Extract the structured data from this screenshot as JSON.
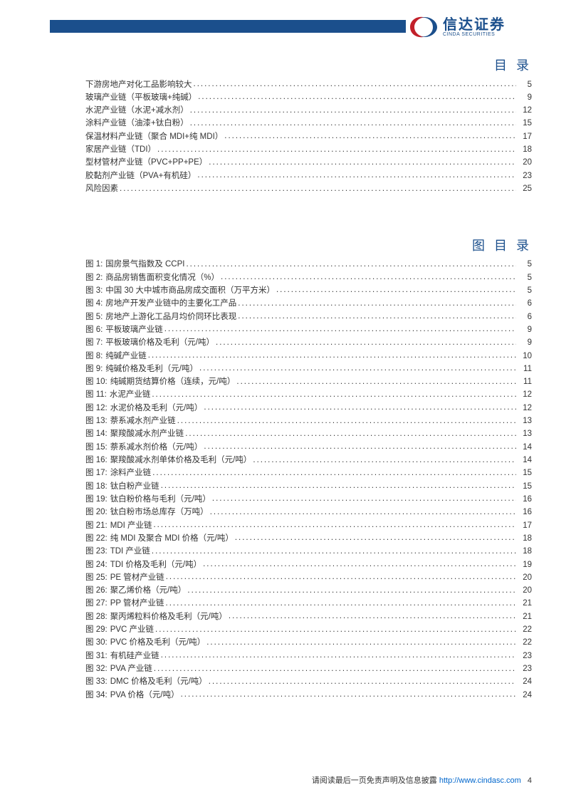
{
  "logo": {
    "cn": "信达证券",
    "en": "CINDA SECURITIES"
  },
  "colors": {
    "header_bar": "#1b4f8c",
    "title": "#1b4f8c",
    "text": "#333333",
    "link": "#0066cc",
    "logo_red": "#c2202a",
    "logo_blue": "#1b4f8c",
    "bg": "#ffffff"
  },
  "sections": {
    "toc_title": "目 录",
    "fig_title": "图 目 录"
  },
  "toc": [
    {
      "label": "下游房地产对化工品影响较大",
      "page": "5"
    },
    {
      "label": "玻璃产业链（平板玻璃+纯碱）",
      "page": "9"
    },
    {
      "label": "水泥产业链（水泥+减水剂）",
      "page": "12"
    },
    {
      "label": "涂料产业链（油漆+钛白粉）",
      "page": "15"
    },
    {
      "label": "保温材料产业链（聚合 MDI+纯 MDI）",
      "page": "17"
    },
    {
      "label": "家居产业链（TDI）",
      "page": "18"
    },
    {
      "label": "型材管材产业链（PVC+PP+PE）",
      "page": "20"
    },
    {
      "label": "胶黏剂产业链（PVA+有机硅）",
      "page": "23"
    },
    {
      "label": "风险因素",
      "page": "25"
    }
  ],
  "figures": [
    {
      "n": "1",
      "label": "国房景气指数及 CCPI",
      "page": "5"
    },
    {
      "n": "2",
      "label": "商品房销售面积变化情况（%）",
      "page": "5"
    },
    {
      "n": "3",
      "label": "中国 30 大中城市商品房成交面积（万平方米）",
      "page": "5"
    },
    {
      "n": "4",
      "label": "房地产开发产业链中的主要化工产品",
      "page": "6"
    },
    {
      "n": "5",
      "label": "房地产上游化工品月均价同环比表现",
      "page": "6"
    },
    {
      "n": "6",
      "label": "平板玻璃产业链",
      "page": "9"
    },
    {
      "n": "7",
      "label": "平板玻璃价格及毛利（元/吨）",
      "page": "9"
    },
    {
      "n": "8",
      "label": "纯碱产业链",
      "page": "10"
    },
    {
      "n": "9",
      "label": "纯碱价格及毛利（元/吨）",
      "page": "11"
    },
    {
      "n": "10",
      "label": "纯碱期货结算价格（连续，元/吨）",
      "page": "11"
    },
    {
      "n": "11",
      "label": "水泥产业链",
      "page": "12"
    },
    {
      "n": "12",
      "label": "水泥价格及毛利（元/吨）",
      "page": "12"
    },
    {
      "n": "13",
      "label": "萘系减水剂产业链",
      "page": "13"
    },
    {
      "n": "14",
      "label": "聚羧酸减水剂产业链",
      "page": "13"
    },
    {
      "n": "15",
      "label": "萘系减水剂价格（元/吨）",
      "page": "14"
    },
    {
      "n": "16",
      "label": "聚羧酸减水剂单体价格及毛利（元/吨）",
      "page": "14"
    },
    {
      "n": "17",
      "label": "涂料产业链",
      "page": "15"
    },
    {
      "n": "18",
      "label": "钛白粉产业链",
      "page": "15"
    },
    {
      "n": "19",
      "label": "钛白粉价格与毛利（元/吨）",
      "page": "16"
    },
    {
      "n": "20",
      "label": "钛白粉市场总库存（万吨）",
      "page": "16"
    },
    {
      "n": "21",
      "label": "MDI 产业链",
      "page": "17"
    },
    {
      "n": "22",
      "label": "纯 MDI 及聚合 MDI 价格（元/吨）",
      "page": "18"
    },
    {
      "n": "23",
      "label": "TDI 产业链",
      "page": "18"
    },
    {
      "n": "24",
      "label": "TDI 价格及毛利（元/吨）",
      "page": "19"
    },
    {
      "n": "25",
      "label": "PE 管材产业链",
      "page": "20"
    },
    {
      "n": "26",
      "label": "聚乙烯价格（元/吨）",
      "page": "20"
    },
    {
      "n": "27",
      "label": "PP 管材产业链",
      "page": "21"
    },
    {
      "n": "28",
      "label": "聚丙烯粒料价格及毛利（元/吨）",
      "page": "21"
    },
    {
      "n": "29",
      "label": "PVC 产业链",
      "page": "22"
    },
    {
      "n": "30",
      "label": "PVC 价格及毛利（元/吨）",
      "page": "22"
    },
    {
      "n": "31",
      "label": "有机硅产业链",
      "page": "23"
    },
    {
      "n": "32",
      "label": "PVA 产业链",
      "page": "23"
    },
    {
      "n": "33",
      "label": "DMC 价格及毛利（元/吨）",
      "page": "24"
    },
    {
      "n": "34",
      "label": "PVA 价格（元/吨）",
      "page": "24"
    }
  ],
  "figure_prefix": "图 ",
  "figure_sep": ":",
  "footer": {
    "text": "请阅读最后一页免责声明及信息披露 ",
    "url_label": "http://www.cindasc.com",
    "url_href": "http://www.cindasc.com",
    "page_number": "4"
  }
}
